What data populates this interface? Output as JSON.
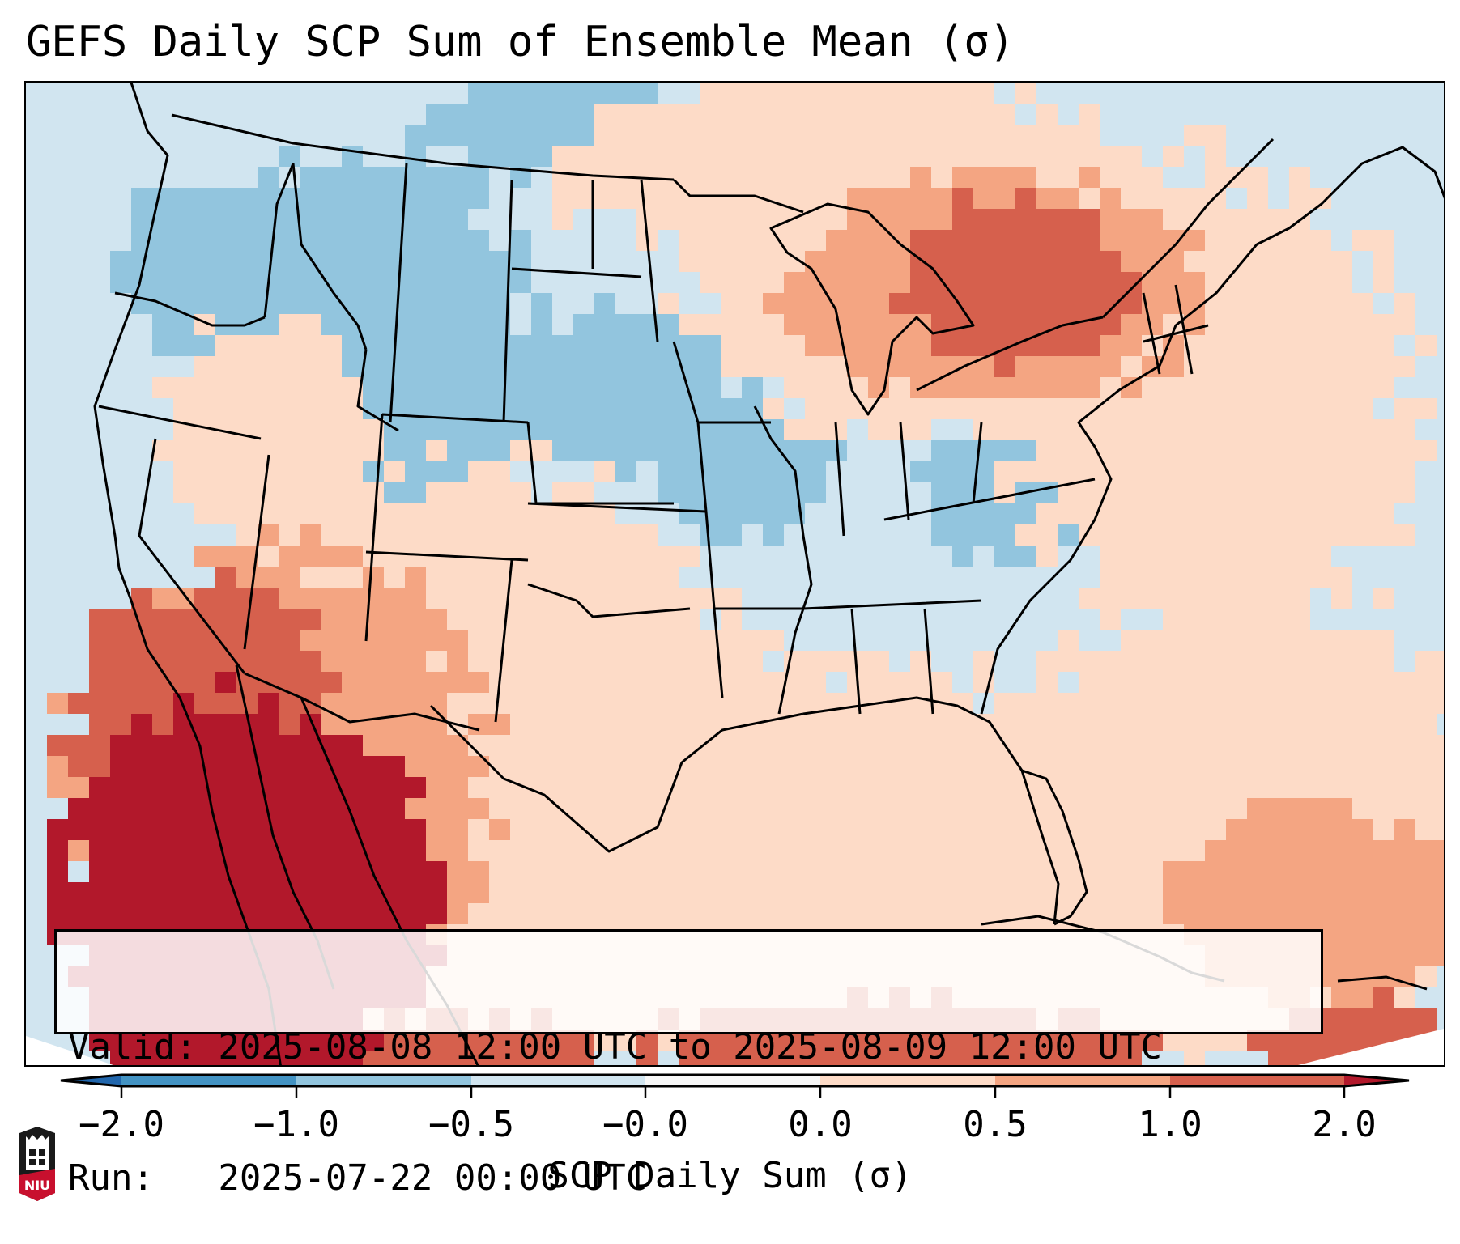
{
  "title": "GEFS Daily SCP Sum of Ensemble Mean (σ)",
  "info": {
    "valid_line": "Valid: 2025-08-08 12:00 UTC to 2025-08-09 12:00 UTC",
    "run_line": "Run:   2025-07-22 00:00 UTC"
  },
  "colorbar": {
    "label": "SCP Daily Sum (σ)",
    "ticks": [
      "−2.0",
      "−1.0",
      "−0.5",
      "−0.0",
      "0.0",
      "0.5",
      "1.0",
      "2.0"
    ],
    "bins": [
      {
        "range": "< -2.0",
        "color": "#2166ac"
      },
      {
        "range": "-2.0 to -1.0",
        "color": "#4393c3"
      },
      {
        "range": "-1.0 to -0.5",
        "color": "#92c5de"
      },
      {
        "range": "-0.5 to -0.0",
        "color": "#d1e5f0"
      },
      {
        "range": "-0.0 to 0.0",
        "color": "#f7f7f7"
      },
      {
        "range": "0.0 to 0.5",
        "color": "#fddbc7"
      },
      {
        "range": "0.5 to 1.0",
        "color": "#f4a582"
      },
      {
        "range": "1.0 to 2.0",
        "color": "#d6604d"
      },
      {
        "range": "> 2.0",
        "color": "#b2182b"
      }
    ],
    "extend": "both"
  },
  "logo": {
    "text": "NIU"
  },
  "chart_data": {
    "type": "heatmap",
    "title": "GEFS Daily SCP Sum of Ensemble Mean (σ)",
    "region": "Contiguous United States and surrounding areas",
    "projection": "Lambert conformal",
    "variable": "SCP Daily Sum (σ)",
    "levels": [
      -2.0,
      -1.0,
      -0.5,
      -0.0,
      0.0,
      0.5,
      1.0,
      2.0
    ],
    "features": [
      {
        "region": "Baja California / Gulf of California / NW Mexico",
        "category": "> 2.0"
      },
      {
        "region": "Southern California / Arizona border",
        "category": "1.0 to 2.0"
      },
      {
        "region": "Upper Great Lakes / Michigan / Ontario",
        "category": "1.0 to 2.0"
      },
      {
        "region": "Bahamas / SW Atlantic",
        "category": "0.5 to 1.0"
      },
      {
        "region": "Northern Plains / Nebraska / Kansas",
        "category": "-1.0 to -0.5"
      },
      {
        "region": "Pacific Northwest / Idaho / Montana",
        "category": "-1.0 to -0.5"
      },
      {
        "region": "Gulf of Mexico / Southeast coast",
        "category": "0.0 to 0.5"
      },
      {
        "region": "Northeast / New England / Maritimes",
        "category": "0.0 to 0.5"
      }
    ]
  }
}
